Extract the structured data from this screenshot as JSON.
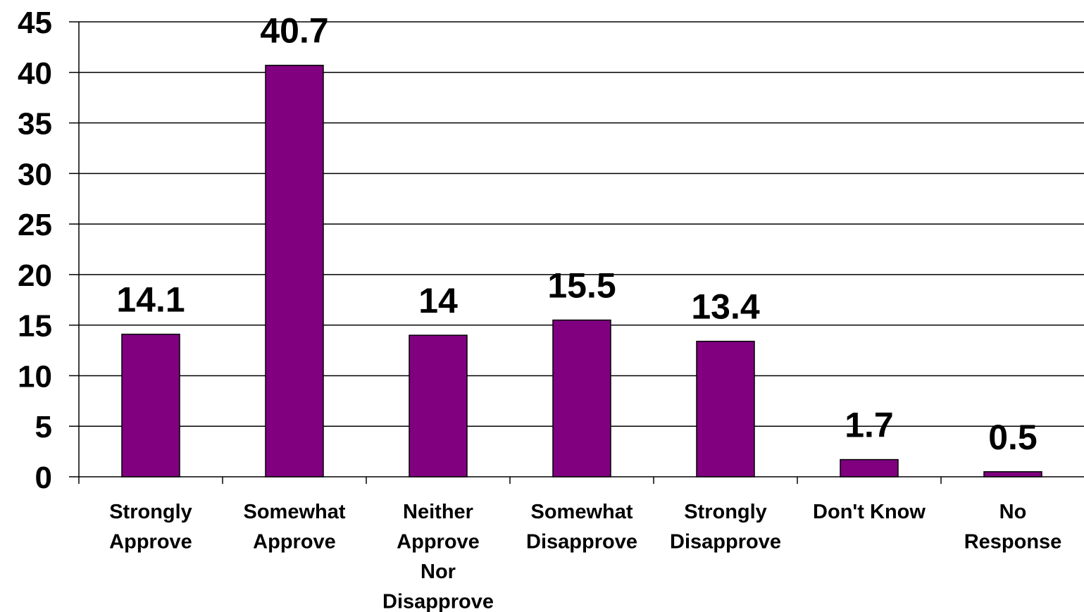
{
  "chart_data": {
    "type": "bar",
    "title": "",
    "xlabel": "",
    "ylabel": "",
    "categories": [
      [
        "Strongly",
        "Approve"
      ],
      [
        "Somewhat",
        "Approve"
      ],
      [
        "Neither",
        "Approve",
        "Nor",
        "Disapprove"
      ],
      [
        "Somewhat",
        "Disapprove"
      ],
      [
        "Strongly",
        "Disapprove"
      ],
      [
        "Don't Know"
      ],
      [
        "No",
        "Response"
      ]
    ],
    "values": [
      14.1,
      40.7,
      14,
      15.5,
      13.4,
      1.7,
      0.5
    ],
    "value_labels": [
      "14.1",
      "40.7",
      "14",
      "15.5",
      "13.4",
      "1.7",
      "0.5"
    ],
    "yticks": [
      0,
      5,
      10,
      15,
      20,
      25,
      30,
      35,
      40,
      45
    ],
    "ylim": [
      0,
      45
    ],
    "grid": true,
    "legend": "none",
    "colors": {
      "bar_fill": "#800080",
      "bar_stroke": "#000000",
      "grid": "#000000",
      "background": "#ffffff"
    }
  }
}
